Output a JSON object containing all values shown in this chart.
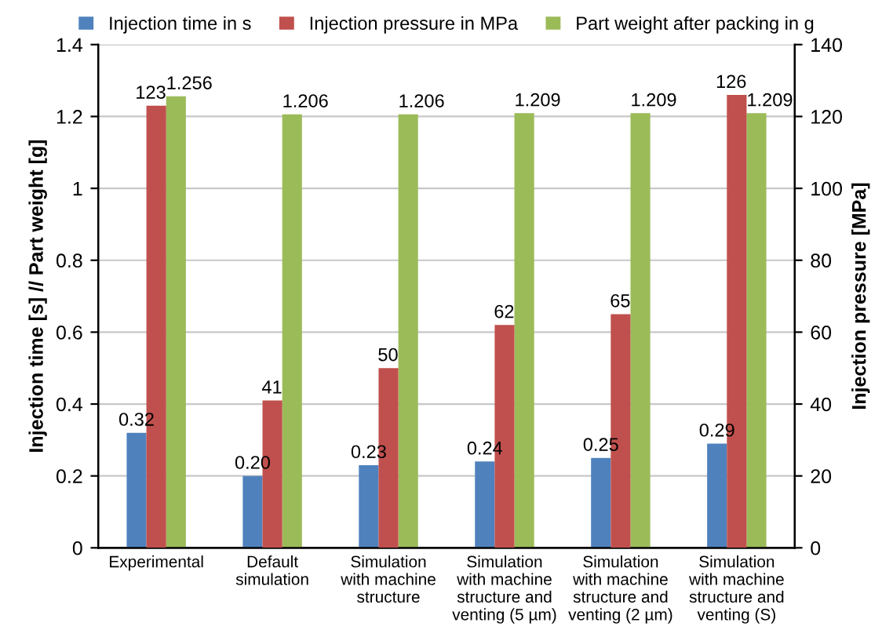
{
  "chart_data": {
    "type": "bar",
    "ylabel": "Injection time [s] // Part weight [g]",
    "y2label": "Injection pressure [MPa]",
    "categories": [
      "Experimental",
      "Default\nsimulation",
      "Simulation\nwith machine\nstructure",
      "Simulation\nwith machine\nstructure and\nventing (5 µm)",
      "Simulation\nwith machine\nstructure and\nventing (2 µm)",
      "Simulation\nwith machine\nstructure and\nventing (S)"
    ],
    "series": [
      {
        "name": "Injection time in s",
        "color": "#4f81bd",
        "values": [
          0.32,
          0.2,
          0.23,
          0.24,
          0.25,
          0.29
        ],
        "value_labels": [
          "0.32",
          "0.20",
          "0.23",
          "0.24",
          "0.25",
          "0.29"
        ]
      },
      {
        "name": "Injection pressure in MPa",
        "color": "#c0504d",
        "axis": "y2",
        "values": [
          123,
          41,
          50,
          62,
          65,
          126
        ],
        "value_labels": [
          "123",
          "41",
          "50",
          "62",
          "65",
          "126"
        ]
      },
      {
        "name": "Part weight after packing in g",
        "color": "#9bbb59",
        "values": [
          1.256,
          1.206,
          1.206,
          1.209,
          1.209,
          1.209
        ],
        "value_labels": [
          "1.256",
          "1.206",
          "1.206",
          "1.209",
          "1.209",
          "1.209"
        ]
      }
    ],
    "ylim": [
      0,
      1.4
    ],
    "yticks": [
      0,
      0.2,
      0.4,
      0.6,
      0.8,
      1,
      1.2,
      1.4
    ],
    "y2lim": [
      0,
      140
    ],
    "y2ticks": [
      0,
      20,
      40,
      60,
      80,
      100,
      120,
      140
    ],
    "grid": "y",
    "legend": "top"
  }
}
